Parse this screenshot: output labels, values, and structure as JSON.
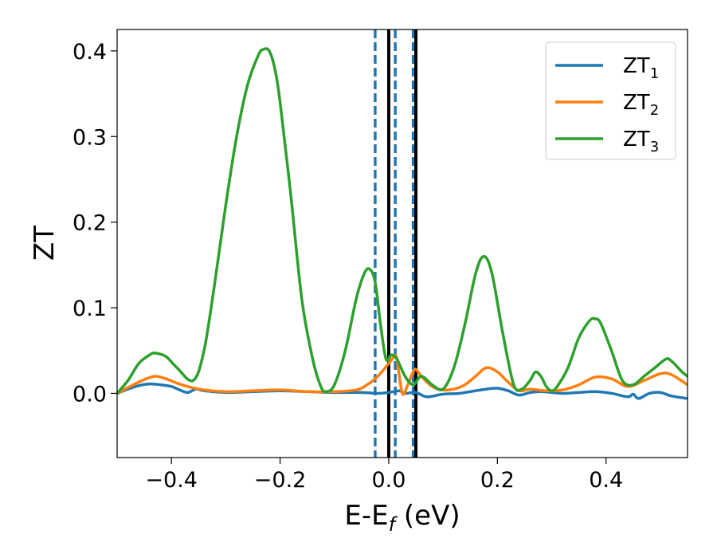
{
  "chart_data": {
    "type": "line",
    "xlabel": "E-E",
    "xlabel_sub": "f",
    "xlabel_unit": " (eV)",
    "ylabel": "ZT",
    "xlim": [
      -0.5,
      0.55
    ],
    "ylim": [
      -0.075,
      0.425
    ],
    "xticks": [
      -0.4,
      -0.2,
      0.0,
      0.2,
      0.4
    ],
    "xtick_labels": [
      "−0.4",
      "−0.2",
      "0.0",
      "0.2",
      "0.4"
    ],
    "yticks": [
      0.0,
      0.1,
      0.2,
      0.3,
      0.4
    ],
    "ytick_labels": [
      "0.0",
      "0.1",
      "0.2",
      "0.3",
      "0.4"
    ],
    "legend_position": "top-right",
    "vertical_lines": [
      {
        "x": -0.025,
        "style": "dashed",
        "color": "#1f77b4"
      },
      {
        "x": 0.012,
        "style": "dashed",
        "color": "#1f77b4"
      },
      {
        "x": 0.045,
        "style": "dashed",
        "color": "#1f77b4"
      },
      {
        "x": 0.0,
        "style": "solid",
        "color": "#000000"
      },
      {
        "x": 0.05,
        "style": "solid",
        "color": "#000000"
      }
    ],
    "series": [
      {
        "name": "ZT",
        "name_sub": "1",
        "color": "#1f77b4",
        "x": [
          -0.5,
          -0.48,
          -0.46,
          -0.44,
          -0.42,
          -0.4,
          -0.385,
          -0.37,
          -0.355,
          -0.34,
          -0.3,
          -0.25,
          -0.2,
          -0.15,
          -0.1,
          -0.05,
          -0.02,
          0.0,
          0.02,
          0.03,
          0.05,
          0.07,
          0.1,
          0.13,
          0.15,
          0.18,
          0.2,
          0.22,
          0.24,
          0.26,
          0.28,
          0.3,
          0.32,
          0.35,
          0.38,
          0.41,
          0.44,
          0.45,
          0.46,
          0.48,
          0.5,
          0.52,
          0.55
        ],
        "y": [
          0.0,
          0.005,
          0.009,
          0.011,
          0.01,
          0.008,
          0.004,
          0.001,
          0.005,
          0.003,
          0.001,
          0.002,
          0.003,
          0.002,
          0.001,
          0.001,
          0.0,
          0.001,
          0.003,
          0.0,
          0.001,
          -0.004,
          -0.001,
          0.0,
          0.002,
          0.005,
          0.006,
          0.003,
          -0.002,
          0.001,
          0.002,
          0.001,
          0.0,
          0.001,
          0.002,
          0.0,
          -0.004,
          -0.001,
          -0.006,
          0.0,
          0.001,
          -0.003,
          -0.006
        ]
      },
      {
        "name": "ZT",
        "name_sub": "2",
        "color": "#ff7f0e",
        "x": [
          -0.5,
          -0.47,
          -0.45,
          -0.43,
          -0.41,
          -0.39,
          -0.37,
          -0.34,
          -0.3,
          -0.25,
          -0.2,
          -0.15,
          -0.1,
          -0.06,
          -0.04,
          -0.02,
          0.0,
          0.01,
          0.015,
          0.025,
          0.035,
          0.045,
          0.05,
          0.06,
          0.08,
          0.1,
          0.12,
          0.14,
          0.16,
          0.18,
          0.2,
          0.22,
          0.24,
          0.26,
          0.29,
          0.32,
          0.35,
          0.38,
          0.41,
          0.44,
          0.47,
          0.5,
          0.52,
          0.55
        ],
        "y": [
          0.0,
          0.01,
          0.016,
          0.02,
          0.017,
          0.012,
          0.008,
          0.004,
          0.002,
          0.003,
          0.004,
          0.002,
          0.002,
          0.004,
          0.01,
          0.02,
          0.035,
          0.043,
          0.04,
          0.0,
          0.01,
          0.025,
          0.028,
          0.02,
          0.008,
          0.004,
          0.005,
          0.01,
          0.02,
          0.03,
          0.025,
          0.013,
          0.003,
          0.005,
          0.003,
          0.004,
          0.01,
          0.019,
          0.017,
          0.008,
          0.015,
          0.023,
          0.022,
          0.01
        ]
      },
      {
        "name": "ZT",
        "name_sub": "3",
        "color": "#2ca02c",
        "x": [
          -0.5,
          -0.48,
          -0.46,
          -0.44,
          -0.43,
          -0.41,
          -0.39,
          -0.36,
          -0.34,
          -0.32,
          -0.3,
          -0.28,
          -0.26,
          -0.24,
          -0.23,
          -0.22,
          -0.21,
          -0.2,
          -0.18,
          -0.16,
          -0.14,
          -0.125,
          -0.115,
          -0.1,
          -0.08,
          -0.06,
          -0.045,
          -0.035,
          -0.025,
          -0.015,
          -0.005,
          0.005,
          0.015,
          0.03,
          0.045,
          0.06,
          0.08,
          0.1,
          0.12,
          0.14,
          0.16,
          0.175,
          0.19,
          0.21,
          0.23,
          0.245,
          0.26,
          0.27,
          0.28,
          0.29,
          0.3,
          0.31,
          0.33,
          0.35,
          0.37,
          0.38,
          0.39,
          0.41,
          0.43,
          0.45,
          0.47,
          0.49,
          0.51,
          0.52,
          0.54,
          0.55
        ],
        "y": [
          0.0,
          0.015,
          0.035,
          0.045,
          0.047,
          0.043,
          0.03,
          0.015,
          0.05,
          0.13,
          0.22,
          0.3,
          0.36,
          0.395,
          0.402,
          0.4,
          0.38,
          0.34,
          0.23,
          0.11,
          0.04,
          0.008,
          0.002,
          0.01,
          0.05,
          0.11,
          0.14,
          0.145,
          0.13,
          0.08,
          0.04,
          0.045,
          0.04,
          0.02,
          0.01,
          0.02,
          0.01,
          0.005,
          0.03,
          0.08,
          0.14,
          0.16,
          0.14,
          0.07,
          0.01,
          0.005,
          0.015,
          0.025,
          0.02,
          0.008,
          0.003,
          0.008,
          0.03,
          0.065,
          0.085,
          0.087,
          0.082,
          0.05,
          0.015,
          0.01,
          0.02,
          0.03,
          0.04,
          0.038,
          0.025,
          0.02
        ]
      }
    ]
  }
}
